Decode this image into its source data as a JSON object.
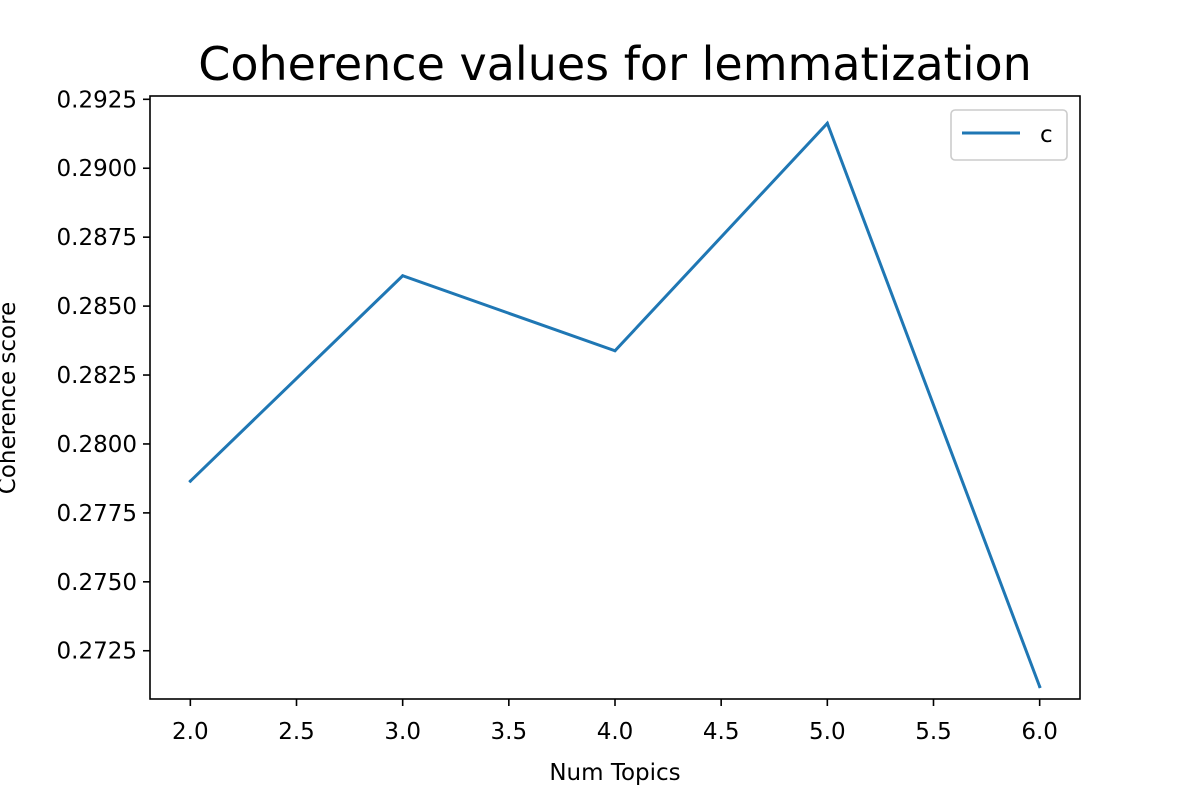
{
  "chart_data": {
    "type": "line",
    "title": "Coherence values for lemmatization",
    "xlabel": "Num Topics",
    "ylabel": "Coherence score",
    "x": [
      2,
      3,
      4,
      5,
      6
    ],
    "series": [
      {
        "name": "c",
        "color": "#1f77b4",
        "values": [
          0.27865,
          0.2861,
          0.28338,
          0.29163,
          0.2712
        ]
      }
    ],
    "xlim": [
      1.81,
      6.19
    ],
    "ylim": [
      0.27075,
      0.29262
    ],
    "xticks": [
      2.0,
      2.5,
      3.0,
      3.5,
      4.0,
      4.5,
      5.0,
      5.5,
      6.0
    ],
    "xtick_labels": [
      "2.0",
      "2.5",
      "3.0",
      "3.5",
      "4.0",
      "4.5",
      "5.0",
      "5.5",
      "6.0"
    ],
    "yticks": [
      0.2725,
      0.275,
      0.2775,
      0.28,
      0.2825,
      0.285,
      0.2875,
      0.29,
      0.2925
    ],
    "ytick_labels": [
      "0.2725",
      "0.2750",
      "0.2775",
      "0.2800",
      "0.2825",
      "0.2850",
      "0.2875",
      "0.2900",
      "0.2925"
    ],
    "grid": false,
    "legend_position": "top-right"
  }
}
